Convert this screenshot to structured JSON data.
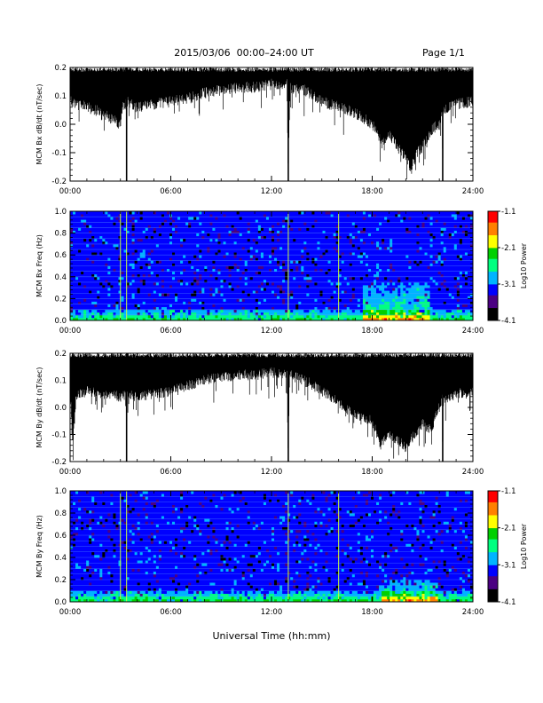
{
  "header": {
    "title": "2015/03/06  00:00–24:00 UT",
    "page": "Page 1/1"
  },
  "xaxis_title": "Universal Time (hh:mm)",
  "colors": {
    "trace": "#000000",
    "spectrogram_background": "#1a1aa8",
    "colormap": [
      "#000000",
      "#4b0082",
      "#0000ff",
      "#00b4ff",
      "#00ff80",
      "#00d000",
      "#ffff00",
      "#ff8000",
      "#ff0000"
    ]
  },
  "chart_data": [
    {
      "type": "line",
      "ylabel": "MCM Bx dB/dt (nT/sec)",
      "xlim": [
        "00:00",
        "24:00"
      ],
      "ylim": [
        -0.2,
        0.2
      ],
      "xticks": [
        "00:00",
        "06:00",
        "12:00",
        "18:00",
        "24:00"
      ],
      "yticks": [
        "-0.2",
        "-0.1",
        "0.0",
        "0.1",
        "0.2"
      ],
      "series": [
        {
          "x": [
            "00:00",
            "01:00",
            "02:00",
            "02:55",
            "03:00",
            "03:05",
            "03:20",
            "03:22",
            "03:24",
            "04:00",
            "05:00",
            "06:00",
            "07:00",
            "08:00",
            "09:00",
            "10:00",
            "11:00",
            "12:00",
            "12:55",
            "13:00",
            "13:05",
            "14:00",
            "15:00",
            "16:00",
            "17:00",
            "18:00",
            "18:30",
            "19:00",
            "19:30",
            "20:00",
            "20:20",
            "20:40",
            "21:00",
            "21:30",
            "22:00",
            "22:10",
            "22:12",
            "22:14",
            "23:00",
            "24:00"
          ],
          "y": [
            0.08,
            0.06,
            0.04,
            0.0,
            0.0,
            0.06,
            0.08,
            -0.2,
            0.08,
            0.06,
            0.07,
            0.08,
            0.09,
            0.11,
            0.12,
            0.13,
            0.13,
            0.14,
            0.14,
            -0.2,
            0.13,
            0.12,
            0.08,
            0.06,
            0.04,
            0.0,
            -0.06,
            -0.04,
            -0.08,
            -0.12,
            -0.16,
            -0.1,
            -0.08,
            -0.02,
            0.0,
            0.06,
            -0.2,
            0.05,
            0.07,
            0.08
          ],
          "upper_envelope": 0.2
        }
      ]
    },
    {
      "type": "heatmap",
      "ylabel": "MCM Bx Freq (Hz)",
      "xlim": [
        "00:00",
        "24:00"
      ],
      "ylim": [
        0.0,
        1.0
      ],
      "xticks": [
        "00:00",
        "06:00",
        "12:00",
        "18:00",
        "24:00"
      ],
      "yticks": [
        "0.0",
        "0.2",
        "0.4",
        "0.6",
        "0.8",
        "1.0"
      ],
      "colorbar": {
        "label": "Log10 Power",
        "range": [
          -4.1,
          -1.1
        ],
        "ticks": [
          "-1.1",
          "-2.1",
          "-3.1",
          "-4.1"
        ]
      },
      "enhanced_region": {
        "x": [
          "17:30",
          "21:30"
        ],
        "y_max": 0.35
      },
      "vertical_lines": [
        "03:00",
        "03:22",
        "13:00",
        "16:00"
      ]
    },
    {
      "type": "line",
      "ylabel": "MCM By dB/dt (nT/sec)",
      "xlim": [
        "00:00",
        "24:00"
      ],
      "ylim": [
        -0.2,
        0.2
      ],
      "xticks": [
        "00:00",
        "06:00",
        "12:00",
        "18:00",
        "24:00"
      ],
      "yticks": [
        "-0.2",
        "-0.1",
        "0.0",
        "0.1",
        "0.2"
      ],
      "series": [
        {
          "x": [
            "00:00",
            "00:10",
            "00:20",
            "01:00",
            "02:00",
            "03:00",
            "03:20",
            "03:22",
            "03:24",
            "04:00",
            "05:00",
            "06:00",
            "07:00",
            "08:00",
            "09:00",
            "10:00",
            "11:00",
            "12:00",
            "12:55",
            "13:00",
            "13:05",
            "14:00",
            "15:00",
            "16:00",
            "17:00",
            "18:00",
            "18:30",
            "19:00",
            "19:30",
            "20:00",
            "20:30",
            "21:00",
            "21:30",
            "22:00",
            "22:10",
            "22:12",
            "22:14",
            "23:00",
            "24:00"
          ],
          "y": [
            0.06,
            -0.12,
            0.04,
            0.06,
            0.05,
            0.04,
            0.05,
            -0.2,
            0.05,
            0.04,
            0.05,
            0.06,
            0.08,
            0.1,
            0.11,
            0.12,
            0.12,
            0.13,
            0.12,
            -0.2,
            0.12,
            0.1,
            0.06,
            0.02,
            -0.03,
            -0.05,
            -0.14,
            -0.1,
            -0.12,
            -0.15,
            -0.1,
            -0.06,
            -0.08,
            0.0,
            0.03,
            -0.2,
            0.03,
            0.05,
            0.06
          ],
          "upper_envelope": 0.2
        }
      ]
    },
    {
      "type": "heatmap",
      "ylabel": "MCM By Freq (Hz)",
      "xlim": [
        "00:00",
        "24:00"
      ],
      "ylim": [
        0.0,
        1.0
      ],
      "xticks": [
        "00:00",
        "06:00",
        "12:00",
        "18:00",
        "24:00"
      ],
      "yticks": [
        "0.0",
        "0.2",
        "0.4",
        "0.6",
        "0.8",
        "1.0"
      ],
      "colorbar": {
        "label": "Log10 Power",
        "range": [
          -4.1,
          -1.1
        ],
        "ticks": [
          "-1.1",
          "-2.1",
          "-3.1",
          "-4.1"
        ]
      },
      "enhanced_region": {
        "x": [
          "18:30",
          "22:00"
        ],
        "y_max": 0.2
      },
      "vertical_lines": [
        "03:00",
        "03:22",
        "13:00",
        "16:00"
      ]
    }
  ]
}
